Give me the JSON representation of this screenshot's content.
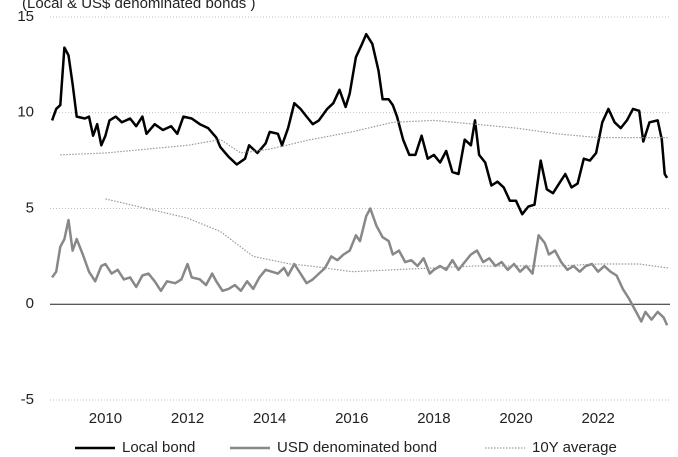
{
  "chart_data": {
    "type": "line",
    "subtitle": "(Local & US$ denominated bonds )",
    "xlim": [
      2008.65,
      2023.75
    ],
    "xticks": [
      2010,
      2012,
      2014,
      2016,
      2018,
      2020,
      2022
    ],
    "ylim": [
      -5,
      15
    ],
    "yticks": [
      -5,
      0,
      5,
      10,
      15
    ],
    "grid": true,
    "legend": "bottom",
    "series": [
      {
        "name": "Local bond",
        "color": "#000000",
        "style": "solid",
        "x": [
          2008.7,
          2008.8,
          2008.9,
          2009.0,
          2009.1,
          2009.2,
          2009.3,
          2009.5,
          2009.6,
          2009.7,
          2009.8,
          2009.9,
          2010.0,
          2010.1,
          2010.25,
          2010.4,
          2010.6,
          2010.75,
          2010.9,
          2011.0,
          2011.2,
          2011.4,
          2011.6,
          2011.75,
          2011.9,
          2012.1,
          2012.3,
          2012.5,
          2012.7,
          2012.8,
          2013.0,
          2013.2,
          2013.4,
          2013.5,
          2013.7,
          2013.9,
          2014.0,
          2014.2,
          2014.3,
          2014.45,
          2014.6,
          2014.75,
          2014.9,
          2015.05,
          2015.2,
          2015.4,
          2015.55,
          2015.7,
          2015.85,
          2015.95,
          2016.1,
          2016.25,
          2016.35,
          2016.5,
          2016.65,
          2016.75,
          2016.9,
          2017.0,
          2017.1,
          2017.25,
          2017.4,
          2017.55,
          2017.7,
          2017.85,
          2018.0,
          2018.15,
          2018.3,
          2018.45,
          2018.6,
          2018.75,
          2018.9,
          2019.0,
          2019.1,
          2019.25,
          2019.4,
          2019.55,
          2019.7,
          2019.85,
          2020.0,
          2020.15,
          2020.3,
          2020.45,
          2020.6,
          2020.75,
          2020.9,
          2021.05,
          2021.2,
          2021.35,
          2021.5,
          2021.65,
          2021.8,
          2021.95,
          2022.1,
          2022.25,
          2022.4,
          2022.55,
          2022.7,
          2022.85,
          2023.0,
          2023.1,
          2023.25,
          2023.45,
          2023.55,
          2023.62,
          2023.68
        ],
        "values": [
          9.6,
          10.2,
          10.4,
          13.4,
          13.0,
          11.5,
          9.8,
          9.7,
          9.8,
          8.8,
          9.4,
          8.3,
          8.8,
          9.6,
          9.8,
          9.5,
          9.7,
          9.3,
          9.8,
          8.9,
          9.4,
          9.1,
          9.3,
          8.9,
          9.8,
          9.7,
          9.4,
          9.2,
          8.7,
          8.2,
          7.7,
          7.3,
          7.6,
          8.3,
          7.9,
          8.4,
          9.0,
          8.9,
          8.3,
          9.2,
          10.5,
          10.2,
          9.8,
          9.4,
          9.6,
          10.2,
          10.5,
          11.2,
          10.3,
          11.0,
          12.9,
          13.6,
          14.1,
          13.6,
          12.2,
          10.7,
          10.7,
          10.4,
          9.8,
          8.6,
          7.8,
          7.8,
          8.8,
          7.6,
          7.8,
          7.4,
          8.0,
          6.9,
          6.8,
          8.6,
          8.3,
          9.6,
          7.8,
          7.4,
          6.2,
          6.4,
          6.1,
          5.4,
          5.4,
          4.7,
          5.1,
          5.2,
          7.5,
          6.0,
          5.8,
          6.3,
          6.8,
          6.1,
          6.3,
          7.6,
          7.5,
          7.9,
          9.5,
          10.2,
          9.5,
          9.2,
          9.6,
          10.2,
          10.1,
          8.5,
          9.5,
          9.6,
          8.6,
          6.8,
          6.6
        ]
      },
      {
        "name": "USD denominated bond",
        "color": "#888888",
        "style": "solid",
        "x": [
          2008.7,
          2008.8,
          2008.9,
          2009.0,
          2009.1,
          2009.2,
          2009.3,
          2009.45,
          2009.6,
          2009.75,
          2009.9,
          2010.0,
          2010.15,
          2010.3,
          2010.45,
          2010.6,
          2010.75,
          2010.9,
          2011.05,
          2011.2,
          2011.35,
          2011.5,
          2011.7,
          2011.85,
          2012.0,
          2012.1,
          2012.3,
          2012.45,
          2012.6,
          2012.7,
          2012.85,
          2013.0,
          2013.15,
          2013.3,
          2013.45,
          2013.6,
          2013.75,
          2013.9,
          2014.05,
          2014.2,
          2014.35,
          2014.45,
          2014.6,
          2014.75,
          2014.9,
          2015.05,
          2015.2,
          2015.35,
          2015.5,
          2015.65,
          2015.8,
          2015.95,
          2016.1,
          2016.2,
          2016.35,
          2016.45,
          2016.6,
          2016.75,
          2016.9,
          2017.0,
          2017.15,
          2017.3,
          2017.45,
          2017.6,
          2017.75,
          2017.9,
          2018.0,
          2018.15,
          2018.3,
          2018.45,
          2018.6,
          2018.75,
          2018.9,
          2019.05,
          2019.2,
          2019.35,
          2019.5,
          2019.65,
          2019.8,
          2019.95,
          2020.1,
          2020.25,
          2020.4,
          2020.55,
          2020.7,
          2020.8,
          2020.95,
          2021.1,
          2021.25,
          2021.4,
          2021.55,
          2021.7,
          2021.85,
          2022.0,
          2022.15,
          2022.3,
          2022.45,
          2022.6,
          2022.75,
          2022.9,
          2023.05,
          2023.15,
          2023.3,
          2023.45,
          2023.6,
          2023.68
        ],
        "values": [
          1.4,
          1.7,
          3.0,
          3.4,
          4.4,
          2.8,
          3.4,
          2.6,
          1.7,
          1.2,
          2.0,
          2.1,
          1.6,
          1.8,
          1.3,
          1.4,
          0.9,
          1.5,
          1.6,
          1.2,
          0.7,
          1.2,
          1.1,
          1.3,
          2.1,
          1.4,
          1.3,
          1.0,
          1.6,
          1.2,
          0.7,
          0.8,
          1.0,
          0.7,
          1.2,
          0.8,
          1.4,
          1.8,
          1.7,
          1.6,
          1.9,
          1.5,
          2.1,
          1.6,
          1.1,
          1.3,
          1.6,
          1.9,
          2.5,
          2.3,
          2.6,
          2.8,
          3.6,
          3.3,
          4.6,
          5.0,
          4.1,
          3.5,
          3.3,
          2.6,
          2.8,
          2.2,
          2.3,
          2.0,
          2.4,
          1.6,
          1.8,
          2.0,
          1.8,
          2.3,
          1.8,
          2.2,
          2.6,
          2.8,
          2.2,
          2.4,
          2.0,
          2.2,
          1.8,
          2.1,
          1.7,
          2.0,
          1.6,
          3.6,
          3.2,
          2.6,
          2.8,
          2.2,
          1.8,
          2.0,
          1.7,
          2.0,
          2.1,
          1.7,
          2.0,
          1.7,
          1.5,
          0.8,
          0.3,
          -0.3,
          -0.9,
          -0.4,
          -0.8,
          -0.4,
          -0.7,
          -1.1
        ]
      },
      {
        "name": "10Y average",
        "color": "#999999",
        "style": "dotted",
        "x": [
          2008.9,
          2010.0,
          2011.0,
          2012.0,
          2012.8,
          2013.3,
          2014.0,
          2015.0,
          2016.0,
          2017.0,
          2018.0,
          2019.0,
          2020.0,
          2021.0,
          2022.0,
          2023.0,
          2023.7,
          null,
          2010.0,
          2011.0,
          2012.0,
          2012.8,
          2013.6,
          2014.5,
          2015.0,
          2016.0,
          2017.0,
          2018.0,
          2019.0,
          2020.0,
          2021.0,
          2022.0,
          2023.0,
          2023.7
        ],
        "values": [
          7.8,
          7.9,
          8.1,
          8.3,
          8.6,
          7.9,
          8.1,
          8.6,
          9.0,
          9.5,
          9.6,
          9.4,
          9.2,
          8.9,
          8.7,
          8.7,
          8.7,
          null,
          5.5,
          5.0,
          4.5,
          3.8,
          2.5,
          2.1,
          2.0,
          1.7,
          1.8,
          1.9,
          2.0,
          2.0,
          2.0,
          2.1,
          2.1,
          1.9
        ]
      }
    ]
  }
}
